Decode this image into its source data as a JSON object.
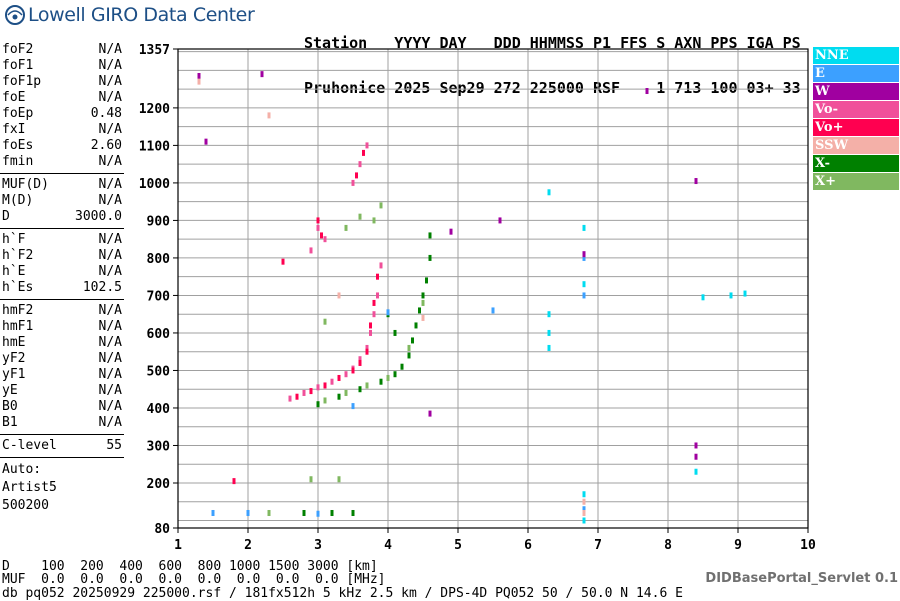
{
  "header": {
    "logo_text": "Lowell GIRO Data Center",
    "row1": [
      "Station",
      "YYYY",
      "DAY",
      "DDD",
      "HHMMSS",
      "P1",
      "FFS",
      "S",
      "AXN",
      "PPS",
      "IGA",
      "PS"
    ],
    "row2": [
      "Pruhonice",
      "2025",
      "Sep29",
      "272",
      "225000",
      "RSF",
      "",
      "1",
      "713",
      "100",
      "03+",
      "33"
    ]
  },
  "parameters": [
    {
      "name": "foF2",
      "value": "N/A"
    },
    {
      "name": "foF1",
      "value": "N/A"
    },
    {
      "name": "foF1p",
      "value": "N/A"
    },
    {
      "name": "foE",
      "value": "N/A"
    },
    {
      "name": "foEp",
      "value": "0.48"
    },
    {
      "name": "fxI",
      "value": "N/A"
    },
    {
      "name": "foEs",
      "value": "2.60"
    },
    {
      "name": "fmin",
      "value": "N/A"
    },
    {
      "sep": true
    },
    {
      "name": "MUF(D)",
      "value": "N/A"
    },
    {
      "name": "M(D)",
      "value": "N/A"
    },
    {
      "name": "D",
      "value": "3000.0"
    },
    {
      "sep": true
    },
    {
      "name": "h`F",
      "value": "N/A"
    },
    {
      "name": "h`F2",
      "value": "N/A"
    },
    {
      "name": "h`E",
      "value": "N/A"
    },
    {
      "name": "h`Es",
      "value": "102.5"
    },
    {
      "sep": true
    },
    {
      "name": "hmF2",
      "value": "N/A"
    },
    {
      "name": "hmF1",
      "value": "N/A"
    },
    {
      "name": "hmE",
      "value": "N/A"
    },
    {
      "name": "yF2",
      "value": "N/A"
    },
    {
      "name": "yF1",
      "value": "N/A"
    },
    {
      "name": "yE",
      "value": "N/A"
    },
    {
      "name": "B0",
      "value": "N/A"
    },
    {
      "name": "B1",
      "value": "N/A"
    },
    {
      "sep": true
    },
    {
      "name": "C-level",
      "value": "55"
    },
    {
      "sep": true
    }
  ],
  "auto": {
    "line1": "Auto:",
    "line2": "Artist5",
    "line3": "500200"
  },
  "legend": [
    {
      "label": "NNE",
      "color": "#00dcf0"
    },
    {
      "label": "E",
      "color": "#3ca0ff"
    },
    {
      "label": "W",
      "color": "#a000a0"
    },
    {
      "label": "Vo-",
      "color": "#f0509a"
    },
    {
      "label": "Vo+",
      "color": "#ff0050"
    },
    {
      "label": "SSW",
      "color": "#f4b0a8"
    },
    {
      "label": "X-",
      "color": "#008000"
    },
    {
      "label": "X+",
      "color": "#80b860"
    }
  ],
  "bottom": {
    "d_line": "D    100  200  400  600  800 1000 1500 3000 [km]",
    "muf_line": "MUF  0.0  0.0  0.0  0.0  0.0  0.0  0.0  0.0 [MHz]",
    "footer": "db pq052 20250929 225000.rsf / 181fx512h 5 kHz 2.5 km / DPS-4D PQ052 50 / 50.0 N 14.6 E",
    "servlet": "DIDBasePortal_Servlet 0.1"
  },
  "chart_data": {
    "type": "scatter",
    "x_range": [
      1,
      10
    ],
    "y_range": [
      80,
      1357
    ],
    "x_ticks": [
      "1",
      "2",
      "3",
      "4",
      "5",
      "6",
      "7",
      "8",
      "9",
      "10"
    ],
    "y_ticks": [
      "1357",
      "1200",
      "1100",
      "1000",
      "900",
      "800",
      "700",
      "600",
      "500",
      "400",
      "300",
      "200",
      "80"
    ],
    "grid": true,
    "series": [
      {
        "name": "Vo-",
        "color": "#f0509a",
        "points": [
          [
            2.6,
            425
          ],
          [
            2.8,
            440
          ],
          [
            3.0,
            455
          ],
          [
            3.2,
            470
          ],
          [
            3.4,
            490
          ],
          [
            3.5,
            505
          ],
          [
            3.6,
            530
          ],
          [
            3.7,
            560
          ],
          [
            3.75,
            600
          ],
          [
            3.8,
            650
          ],
          [
            3.85,
            700
          ],
          [
            3.9,
            780
          ],
          [
            3.0,
            880
          ],
          [
            3.1,
            850
          ],
          [
            3.5,
            1000
          ],
          [
            3.6,
            1050
          ],
          [
            3.7,
            1100
          ],
          [
            2.9,
            820
          ]
        ]
      },
      {
        "name": "Vo+",
        "color": "#ff0050",
        "points": [
          [
            2.7,
            430
          ],
          [
            2.9,
            445
          ],
          [
            3.1,
            460
          ],
          [
            3.3,
            480
          ],
          [
            3.5,
            500
          ],
          [
            3.6,
            520
          ],
          [
            3.7,
            550
          ],
          [
            3.75,
            620
          ],
          [
            3.8,
            680
          ],
          [
            3.85,
            750
          ],
          [
            3.0,
            900
          ],
          [
            3.05,
            860
          ],
          [
            3.55,
            1020
          ],
          [
            3.65,
            1080
          ],
          [
            1.8,
            205
          ],
          [
            2.5,
            790
          ]
        ]
      },
      {
        "name": "X-",
        "color": "#008000",
        "points": [
          [
            3.0,
            410
          ],
          [
            3.3,
            430
          ],
          [
            3.6,
            450
          ],
          [
            3.9,
            470
          ],
          [
            4.1,
            490
          ],
          [
            4.2,
            510
          ],
          [
            4.3,
            540
          ],
          [
            4.35,
            580
          ],
          [
            4.4,
            620
          ],
          [
            4.45,
            660
          ],
          [
            4.5,
            700
          ],
          [
            4.55,
            740
          ],
          [
            4.6,
            800
          ],
          [
            4.0,
            650
          ],
          [
            4.1,
            600
          ],
          [
            4.6,
            860
          ],
          [
            3.5,
            120
          ],
          [
            3.2,
            120
          ],
          [
            2.8,
            120
          ]
        ]
      },
      {
        "name": "X+",
        "color": "#80b860",
        "points": [
          [
            3.1,
            420
          ],
          [
            3.4,
            440
          ],
          [
            3.7,
            460
          ],
          [
            4.0,
            480
          ],
          [
            4.3,
            560
          ],
          [
            4.5,
            680
          ],
          [
            3.8,
            900
          ],
          [
            3.9,
            940
          ],
          [
            3.6,
            910
          ],
          [
            3.4,
            880
          ],
          [
            3.1,
            630
          ],
          [
            2.9,
            210
          ],
          [
            3.3,
            210
          ],
          [
            2.3,
            120
          ]
        ]
      },
      {
        "name": "NNE",
        "color": "#00dcf0",
        "points": [
          [
            6.3,
            975
          ],
          [
            6.3,
            600
          ],
          [
            6.3,
            560
          ],
          [
            6.8,
            880
          ],
          [
            6.8,
            730
          ],
          [
            6.8,
            170
          ],
          [
            6.8,
            100
          ],
          [
            8.4,
            230
          ],
          [
            8.9,
            700
          ],
          [
            9.1,
            705
          ],
          [
            8.5,
            695
          ],
          [
            6.3,
            650
          ]
        ]
      },
      {
        "name": "E",
        "color": "#3ca0ff",
        "points": [
          [
            6.8,
            800
          ],
          [
            6.8,
            700
          ],
          [
            6.8,
            130
          ],
          [
            1.5,
            120
          ],
          [
            2.0,
            120
          ],
          [
            3.0,
            118
          ],
          [
            4.0,
            655
          ],
          [
            5.5,
            660
          ],
          [
            3.5,
            405
          ]
        ]
      },
      {
        "name": "W",
        "color": "#a000a0",
        "points": [
          [
            1.3,
            1285
          ],
          [
            2.2,
            1290
          ],
          [
            8.4,
            1005
          ],
          [
            7.7,
            1245
          ],
          [
            8.4,
            300
          ],
          [
            8.4,
            270
          ],
          [
            4.9,
            870
          ],
          [
            5.6,
            900
          ],
          [
            6.8,
            810
          ],
          [
            1.4,
            1110
          ],
          [
            4.6,
            385
          ]
        ]
      },
      {
        "name": "SSW",
        "color": "#f4b0a8",
        "points": [
          [
            1.3,
            1270
          ],
          [
            2.3,
            1180
          ],
          [
            6.8,
            150
          ],
          [
            6.8,
            120
          ],
          [
            3.3,
            700
          ],
          [
            4.5,
            640
          ]
        ]
      }
    ]
  }
}
